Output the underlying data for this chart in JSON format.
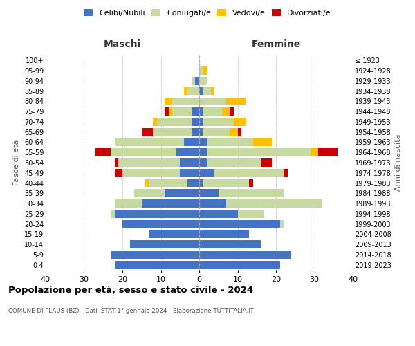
{
  "age_groups": [
    "0-4",
    "5-9",
    "10-14",
    "15-19",
    "20-24",
    "25-29",
    "30-34",
    "35-39",
    "40-44",
    "45-49",
    "50-54",
    "55-59",
    "60-64",
    "65-69",
    "70-74",
    "75-79",
    "80-84",
    "85-89",
    "90-94",
    "95-99",
    "100+"
  ],
  "birth_years": [
    "2019-2023",
    "2014-2018",
    "2009-2013",
    "2004-2008",
    "1999-2003",
    "1994-1998",
    "1989-1993",
    "1984-1988",
    "1979-1983",
    "1974-1978",
    "1969-1973",
    "1964-1968",
    "1959-1963",
    "1954-1958",
    "1949-1953",
    "1944-1948",
    "1939-1943",
    "1934-1938",
    "1929-1933",
    "1924-1928",
    "≤ 1923"
  ],
  "maschi": {
    "celibi": [
      22,
      23,
      18,
      13,
      20,
      22,
      15,
      9,
      3,
      5,
      5,
      6,
      4,
      2,
      2,
      2,
      0,
      0,
      1,
      0,
      0
    ],
    "coniugati": [
      0,
      0,
      0,
      0,
      0,
      1,
      7,
      8,
      10,
      15,
      16,
      17,
      18,
      10,
      9,
      5,
      7,
      3,
      1,
      0,
      0
    ],
    "vedovi": [
      0,
      0,
      0,
      0,
      0,
      0,
      0,
      0,
      1,
      0,
      0,
      0,
      0,
      0,
      1,
      1,
      2,
      1,
      0,
      0,
      0
    ],
    "divorziati": [
      0,
      0,
      0,
      0,
      0,
      0,
      0,
      0,
      0,
      2,
      1,
      4,
      0,
      3,
      0,
      1,
      0,
      0,
      0,
      0,
      0
    ]
  },
  "femmine": {
    "nubili": [
      21,
      24,
      16,
      13,
      21,
      10,
      7,
      5,
      1,
      4,
      2,
      2,
      2,
      1,
      1,
      1,
      0,
      1,
      0,
      0,
      0
    ],
    "coniugate": [
      0,
      0,
      0,
      0,
      1,
      7,
      25,
      17,
      12,
      18,
      14,
      27,
      12,
      7,
      8,
      5,
      7,
      2,
      2,
      1,
      0
    ],
    "vedove": [
      0,
      0,
      0,
      0,
      0,
      0,
      0,
      0,
      0,
      0,
      0,
      2,
      5,
      2,
      3,
      2,
      5,
      1,
      0,
      1,
      0
    ],
    "divorziate": [
      0,
      0,
      0,
      0,
      0,
      0,
      0,
      0,
      1,
      1,
      3,
      5,
      0,
      1,
      0,
      1,
      0,
      0,
      0,
      0,
      0
    ]
  },
  "colors": {
    "celibi": "#4472c4",
    "coniugati": "#c5d9a0",
    "vedovi": "#ffc000",
    "divorziati": "#cc0000"
  },
  "xlim": 40,
  "title": "Popolazione per età, sesso e stato civile - 2024",
  "subtitle": "COMUNE DI PLAUS (BZ) - Dati ISTAT 1° gennaio 2024 - Elaborazione TUTTITALIA.IT",
  "ylabel_left": "Fasce di età",
  "ylabel_right": "Anni di nascita",
  "legend_labels": [
    "Celibi/Nubili",
    "Coniugati/e",
    "Vedovi/e",
    "Divorziati/e"
  ],
  "maschi_label": "Maschi",
  "femmine_label": "Femmine"
}
